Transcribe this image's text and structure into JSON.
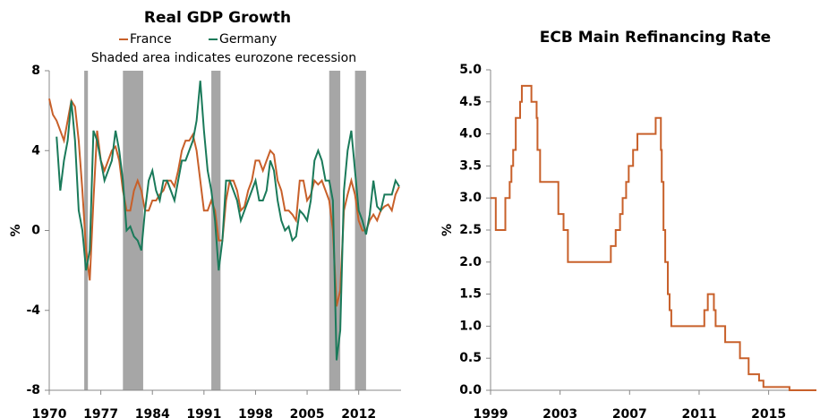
{
  "chart_data": [
    {
      "type": "line",
      "title": "Real GDP Growth",
      "subtitle": "Shaded area indicates eurozone recession",
      "ylabel": "%",
      "x": [
        1970,
        1970.5,
        1971,
        1971.5,
        1972,
        1972.5,
        1973,
        1973.5,
        1974,
        1974.5,
        1975,
        1975.5,
        1976,
        1976.5,
        1977,
        1977.5,
        1978,
        1978.5,
        1979,
        1979.5,
        1980,
        1980.5,
        1981,
        1981.5,
        1982,
        1982.5,
        1983,
        1983.5,
        1984,
        1984.5,
        1985,
        1985.5,
        1986,
        1986.5,
        1987,
        1987.5,
        1988,
        1988.5,
        1989,
        1989.5,
        1990,
        1990.5,
        1991,
        1991.5,
        1992,
        1992.5,
        1993,
        1993.5,
        1994,
        1994.5,
        1995,
        1995.5,
        1996,
        1996.5,
        1997,
        1997.5,
        1998,
        1998.5,
        1999,
        1999.5,
        2000,
        2000.5,
        2001,
        2001.5,
        2002,
        2002.5,
        2003,
        2003.5,
        2004,
        2004.5,
        2005,
        2005.5,
        2006,
        2006.5,
        2007,
        2007.5,
        2008,
        2008.5,
        2009,
        2009.5,
        2010,
        2010.5,
        2011,
        2011.5,
        2012,
        2012.5,
        2013,
        2013.5,
        2014,
        2014.5,
        2015,
        2015.5,
        2016,
        2016.5,
        2017,
        2017.5
      ],
      "series": [
        {
          "name": "France",
          "color": "#c8602a",
          "values": [
            6.6,
            5.8,
            5.5,
            5.0,
            4.5,
            5.5,
            6.5,
            6.2,
            4.5,
            2.0,
            -1.0,
            -2.5,
            1.5,
            5.0,
            3.5,
            3.0,
            3.5,
            4.0,
            4.2,
            3.5,
            2.0,
            1.0,
            1.0,
            2.0,
            2.5,
            2.0,
            1.0,
            1.0,
            1.5,
            1.5,
            1.8,
            2.0,
            2.5,
            2.5,
            2.2,
            3.0,
            4.0,
            4.5,
            4.5,
            4.8,
            4.0,
            2.5,
            1.0,
            1.0,
            1.5,
            1.0,
            -0.5,
            -0.5,
            1.5,
            2.5,
            2.5,
            2.0,
            1.0,
            1.2,
            2.0,
            2.5,
            3.5,
            3.5,
            3.0,
            3.5,
            4.0,
            3.8,
            2.5,
            2.0,
            1.0,
            1.0,
            0.8,
            0.5,
            2.5,
            2.5,
            1.5,
            1.8,
            2.5,
            2.3,
            2.5,
            2.0,
            1.5,
            0.0,
            -3.8,
            -3.0,
            1.0,
            1.8,
            2.5,
            1.8,
            0.5,
            0.0,
            0.0,
            0.5,
            0.8,
            0.5,
            1.0,
            1.2,
            1.3,
            1.0,
            1.8,
            2.2
          ]
        },
        {
          "name": "Germany",
          "color": "#1a7a5a",
          "values": [
            null,
            null,
            4.7,
            2.0,
            3.5,
            4.5,
            6.5,
            4.5,
            1.0,
            0.0,
            -2.0,
            -1.0,
            5.0,
            4.5,
            3.5,
            2.5,
            3.0,
            3.5,
            5.0,
            4.0,
            2.5,
            0.0,
            0.2,
            -0.3,
            -0.5,
            -1.0,
            1.0,
            2.5,
            3.0,
            2.0,
            1.5,
            2.5,
            2.5,
            2.0,
            1.5,
            2.5,
            3.5,
            3.5,
            4.0,
            4.5,
            5.5,
            7.5,
            5.0,
            3.0,
            2.0,
            0.5,
            -2.0,
            -0.5,
            2.5,
            2.5,
            2.0,
            1.5,
            0.5,
            1.0,
            1.5,
            2.0,
            2.5,
            1.5,
            1.5,
            2.0,
            3.5,
            3.0,
            1.5,
            0.5,
            0.0,
            0.2,
            -0.5,
            -0.3,
            1.0,
            0.8,
            0.5,
            1.5,
            3.5,
            4.0,
            3.5,
            2.5,
            2.5,
            1.5,
            -6.5,
            -5.0,
            2.0,
            4.0,
            5.0,
            3.0,
            1.0,
            0.5,
            -0.2,
            0.8,
            2.5,
            1.2,
            1.0,
            1.8,
            1.8,
            1.8,
            2.5,
            2.2
          ]
        }
      ],
      "shaded_periods": [
        [
          1974.75,
          1975.25
        ],
        [
          1980.0,
          1982.75
        ],
        [
          1992.0,
          1993.25
        ],
        [
          2008.0,
          2009.5
        ],
        [
          2011.5,
          2013.0
        ]
      ],
      "xlim": [
        1970,
        2017.75
      ],
      "xticks": [
        1970,
        1977,
        1984,
        1991,
        1998,
        2005,
        2012
      ],
      "ylim": [
        -8,
        8
      ],
      "yticks": [
        -8,
        -4,
        0,
        4,
        8
      ],
      "legend": "top"
    },
    {
      "type": "step",
      "title": "ECB Main Refinancing Rate",
      "ylabel": "%",
      "x": [
        1999.0,
        1999.3,
        1999.85,
        2000.1,
        2000.2,
        2000.3,
        2000.45,
        2000.7,
        2000.8,
        2001.35,
        2001.65,
        2001.7,
        2001.85,
        2002.9,
        2003.2,
        2003.45,
        2005.92,
        2006.2,
        2006.45,
        2006.6,
        2006.8,
        2006.95,
        2007.2,
        2007.45,
        2008.5,
        2008.8,
        2008.85,
        2008.95,
        2009.05,
        2009.2,
        2009.3,
        2009.4,
        2011.3,
        2011.5,
        2011.85,
        2011.95,
        2012.5,
        2013.35,
        2013.85,
        2014.45,
        2014.7,
        2016.2,
        2017.75
      ],
      "series": [
        {
          "color": "#c8602a",
          "values": [
            3.0,
            2.5,
            3.0,
            3.25,
            3.5,
            3.75,
            4.25,
            4.5,
            4.75,
            4.5,
            4.25,
            3.75,
            3.25,
            2.75,
            2.5,
            2.0,
            2.25,
            2.5,
            2.75,
            3.0,
            3.25,
            3.5,
            3.75,
            4.0,
            4.25,
            3.75,
            3.25,
            2.5,
            2.0,
            1.5,
            1.25,
            1.0,
            1.25,
            1.5,
            1.25,
            1.0,
            0.75,
            0.5,
            0.25,
            0.15,
            0.05,
            0.0,
            0.0
          ]
        }
      ],
      "xlim": [
        1999,
        2017.75
      ],
      "xticks": [
        1999,
        2003,
        2007,
        2011,
        2015
      ],
      "ylim": [
        0,
        5
      ],
      "yticks": [
        {
          "value": 0,
          "label": "0.0"
        },
        0.5,
        {
          "value": 1,
          "label": "1.0"
        },
        1.5,
        {
          "value": 2,
          "label": "2.0"
        },
        2.5,
        {
          "value": 3,
          "label": "3.0"
        },
        3.5,
        {
          "value": 4,
          "label": "4.0"
        },
        4.5,
        {
          "value": 5,
          "label": "5.0"
        }
      ]
    }
  ]
}
